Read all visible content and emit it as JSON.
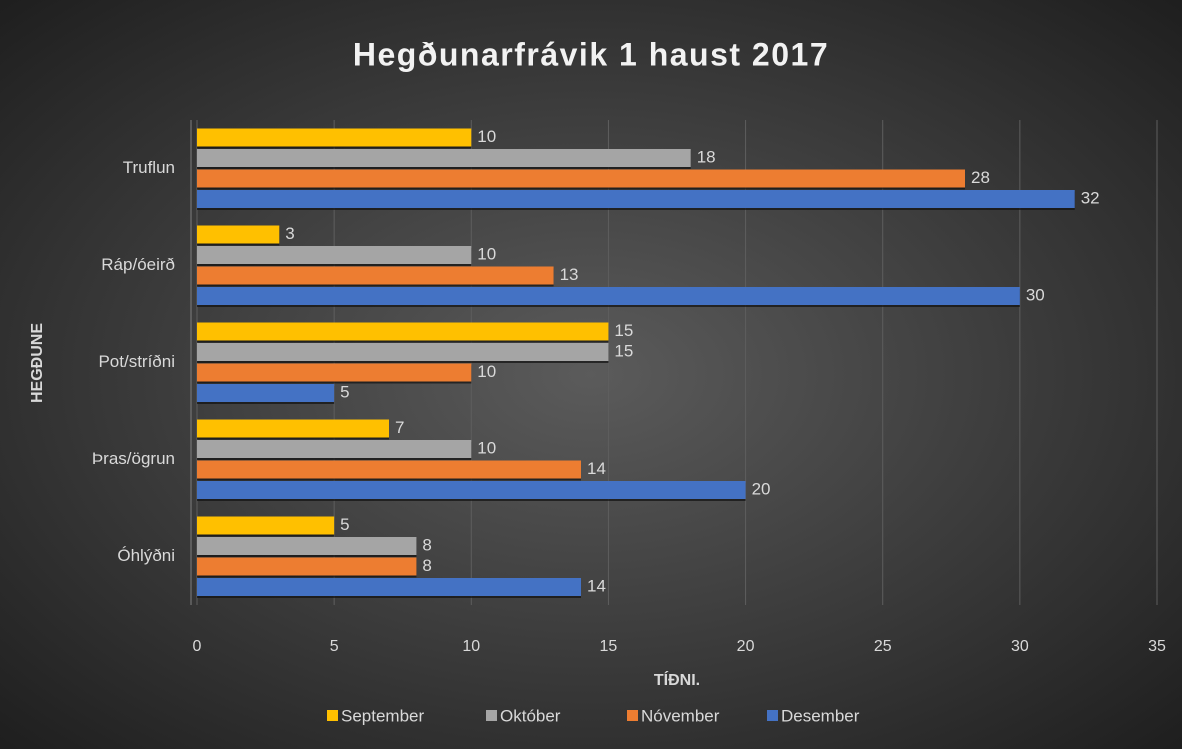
{
  "chart_data": {
    "type": "hbar",
    "title": "Hegðunarfrávik 1 haust 2017",
    "xlabel": "TÍÐNI.",
    "ylabel": "HEGÐUNE",
    "categories": [
      "Truflun",
      "Ráp/óeirð",
      "Pot/stríðni",
      "Þras/ögrun",
      "Óhlýðni"
    ],
    "series": [
      {
        "name": "September",
        "color": "#ffc000",
        "values": [
          10,
          3,
          15,
          7,
          5
        ]
      },
      {
        "name": "Október",
        "color": "#a5a5a5",
        "values": [
          18,
          10,
          15,
          10,
          8
        ]
      },
      {
        "name": "Nóvember",
        "color": "#ed7d31",
        "values": [
          28,
          13,
          10,
          14,
          8
        ]
      },
      {
        "name": "Desember",
        "color": "#4472c4",
        "values": [
          32,
          30,
          5,
          20,
          14
        ]
      }
    ],
    "xlim": [
      0,
      35
    ],
    "xticks": [
      0,
      5,
      10,
      15,
      20,
      25,
      30,
      35
    ],
    "grid": true,
    "legend": "bottom"
  }
}
